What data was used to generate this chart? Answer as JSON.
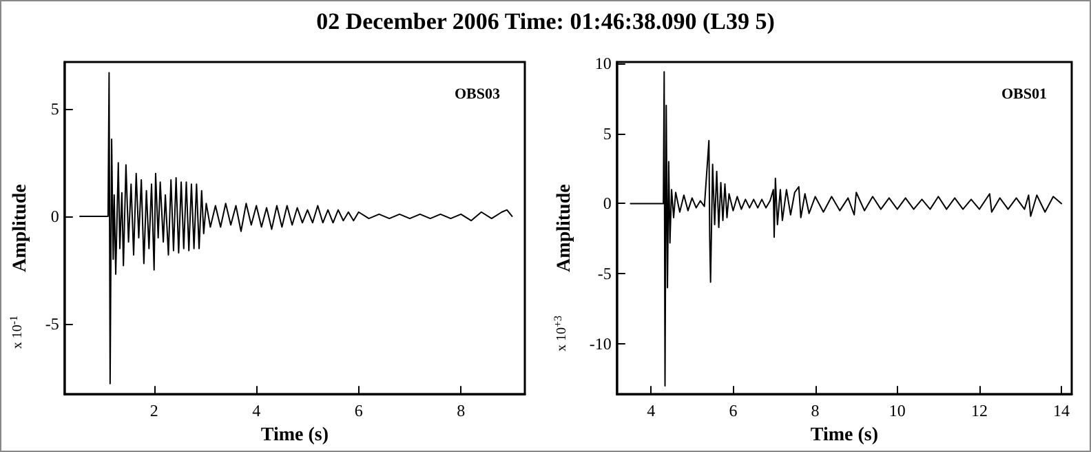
{
  "chart_data": [
    {
      "type": "line",
      "title": "02 December 2006 Time: 01:46:38.090 (L39 5)",
      "xlabel": "Time (s)",
      "ylabel": "Amplitude",
      "annotations": [
        "OBS03",
        "x 10$^{-1}$"
      ],
      "xlim": [
        0.25,
        9.25
      ],
      "ylim": [
        -8.3,
        7.2
      ],
      "xticks": [
        2,
        4,
        6,
        8
      ],
      "yticks": [
        -5,
        0,
        5
      ],
      "grid": false,
      "marker": "none",
      "line_style": "solid",
      "series": [
        {
          "color": "#000000",
          "x": [
            0.55,
            1.1,
            1.12,
            1.14,
            1.17,
            1.2,
            1.22,
            1.25,
            1.3,
            1.33,
            1.37,
            1.4,
            1.45,
            1.5,
            1.55,
            1.6,
            1.65,
            1.7,
            1.75,
            1.8,
            1.85,
            1.9,
            1.95,
            2.0,
            2.03,
            2.08,
            2.12,
            2.18,
            2.22,
            2.28,
            2.33,
            2.38,
            2.43,
            2.48,
            2.53,
            2.58,
            2.63,
            2.68,
            2.73,
            2.78,
            2.83,
            2.88,
            2.93,
            2.97,
            3.02,
            3.1,
            3.2,
            3.3,
            3.4,
            3.5,
            3.6,
            3.7,
            3.8,
            3.9,
            4.0,
            4.1,
            4.2,
            4.3,
            4.4,
            4.5,
            4.6,
            4.7,
            4.8,
            4.9,
            5.0,
            5.1,
            5.2,
            5.3,
            5.4,
            5.5,
            5.6,
            5.7,
            5.8,
            5.9,
            6.0,
            6.2,
            6.4,
            6.6,
            6.8,
            7.0,
            7.2,
            7.4,
            7.6,
            7.8,
            8.0,
            8.2,
            8.4,
            8.6,
            8.8,
            8.9,
            9.0
          ],
          "values": [
            0,
            0,
            6.7,
            -7.8,
            3.6,
            -2,
            1,
            -2.7,
            2.5,
            -1.5,
            1.1,
            -2.3,
            2.4,
            -1.2,
            1.5,
            -1.8,
            2.0,
            -1.0,
            1.7,
            -2.2,
            1.2,
            -1.5,
            1.5,
            -2.5,
            2.0,
            -1.0,
            1.6,
            -1.2,
            1.0,
            -1.8,
            1.7,
            -1.6,
            1.8,
            -1.7,
            1.6,
            -1.5,
            1.6,
            -1.6,
            1.5,
            -1.5,
            1.5,
            -1.5,
            1.2,
            -0.8,
            0.6,
            -0.5,
            0.5,
            -0.5,
            0.6,
            -0.4,
            0.5,
            -0.7,
            0.6,
            -0.4,
            0.5,
            -0.5,
            0.4,
            -0.6,
            0.5,
            -0.5,
            0.5,
            -0.4,
            0.4,
            -0.3,
            0.3,
            -0.3,
            0.5,
            -0.3,
            0.3,
            -0.3,
            0.3,
            -0.2,
            0.2,
            -0.2,
            0.2,
            -0.1,
            0.1,
            -0.1,
            0.1,
            -0.1,
            0.1,
            -0.1,
            0.1,
            -0.1,
            0.1,
            -0.2,
            0.2,
            -0.1,
            0.2,
            0.3,
            0
          ]
        }
      ]
    },
    {
      "type": "line",
      "xlabel": "Time (s)",
      "ylabel": "Amplitude",
      "annotations": [
        "OBS01",
        "x 10$^{+3}$"
      ],
      "xlim": [
        3.17,
        14.25
      ],
      "ylim": [
        -13.6,
        10.1
      ],
      "xticks": [
        4,
        6,
        8,
        10,
        12,
        14
      ],
      "yticks": [
        -10,
        -5,
        0,
        5,
        10
      ],
      "grid": false,
      "marker": "none",
      "line_style": "solid",
      "series": [
        {
          "color": "#000000",
          "x": [
            3.5,
            4.3,
            4.32,
            4.34,
            4.37,
            4.4,
            4.43,
            4.46,
            4.5,
            4.55,
            4.6,
            4.7,
            4.8,
            4.9,
            5.0,
            5.1,
            5.2,
            5.3,
            5.38,
            5.41,
            5.43,
            5.45,
            5.5,
            5.55,
            5.6,
            5.65,
            5.7,
            5.75,
            5.8,
            5.85,
            5.9,
            6.0,
            6.1,
            6.2,
            6.3,
            6.4,
            6.5,
            6.6,
            6.7,
            6.8,
            6.9,
            6.98,
            7.0,
            7.03,
            7.08,
            7.15,
            7.2,
            7.3,
            7.4,
            7.5,
            7.6,
            7.65,
            7.75,
            7.85,
            8.0,
            8.2,
            8.4,
            8.6,
            8.8,
            8.95,
            9.0,
            9.2,
            9.4,
            9.6,
            9.8,
            10.0,
            10.2,
            10.4,
            10.6,
            10.8,
            11.0,
            11.2,
            11.4,
            11.6,
            11.8,
            12.0,
            12.25,
            12.3,
            12.5,
            12.7,
            12.9,
            13.1,
            13.2,
            13.25,
            13.4,
            13.6,
            13.8,
            14.0
          ],
          "values": [
            0,
            0,
            9.4,
            -13,
            7,
            -6,
            3,
            -2.8,
            1,
            -1,
            0.8,
            -0.6,
            0.6,
            -0.5,
            0.4,
            -0.3,
            0.2,
            -0.2,
            3.2,
            4.5,
            -2.5,
            -5.6,
            2.8,
            -1.5,
            2.3,
            -1.7,
            1.5,
            -1.2,
            1.4,
            -1,
            0.7,
            -0.5,
            0.5,
            -0.4,
            0.3,
            -0.3,
            0.3,
            -0.3,
            0.3,
            -0.3,
            0.2,
            1,
            -2.4,
            1.8,
            -1.5,
            1.0,
            -1.2,
            1.0,
            -0.8,
            0.8,
            1.2,
            -1.0,
            0.7,
            -0.7,
            0.5,
            -0.6,
            0.5,
            -0.5,
            0.4,
            -0.8,
            0.8,
            -0.5,
            0.5,
            -0.4,
            0.4,
            -0.4,
            0.4,
            -0.4,
            0.3,
            -0.4,
            0.5,
            -0.4,
            0.4,
            -0.4,
            0.3,
            -0.4,
            0.7,
            -0.6,
            0.4,
            -0.4,
            0.4,
            -0.4,
            0.6,
            -0.9,
            0.6,
            -0.6,
            0.5,
            0
          ]
        }
      ]
    }
  ]
}
